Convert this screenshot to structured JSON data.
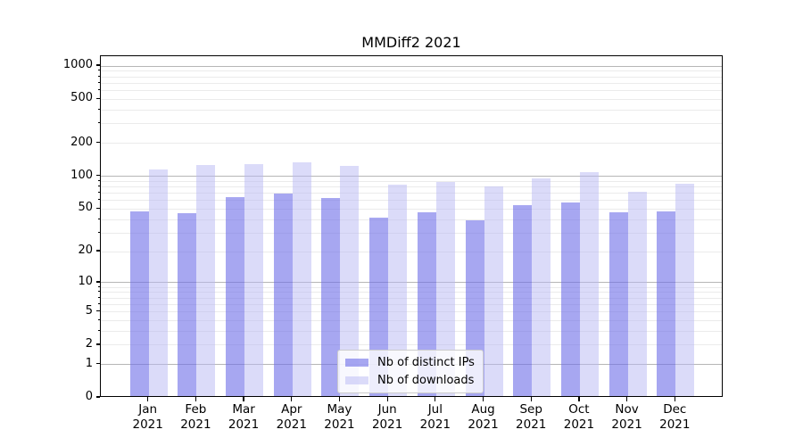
{
  "chart_data": {
    "type": "bar",
    "title": "MMDiff2 2021",
    "categories": [
      "Jan",
      "Feb",
      "Mar",
      "Apr",
      "May",
      "Jun",
      "Jul",
      "Aug",
      "Sep",
      "Oct",
      "Nov",
      "Dec"
    ],
    "year_label": "2021",
    "series": [
      {
        "name": "Nb of distinct IPs",
        "values": [
          46,
          44,
          62,
          67,
          61,
          40,
          45,
          38,
          52,
          55,
          45,
          46
        ],
        "color": "rgba(108,108,232,0.60)",
        "solid_color": "#a6a6f0"
      },
      {
        "name": "Nb of downloads",
        "values": [
          112,
          121,
          124,
          129,
          119,
          81,
          86,
          78,
          92,
          105,
          69,
          82
        ],
        "color": "rgba(183,183,243,0.50)",
        "solid_color": "#dcdcf9"
      }
    ],
    "y_axis": {
      "scale": "log1p",
      "tick_labels": [
        "1000",
        "500",
        "200",
        "100",
        "50",
        "20",
        "10",
        "5",
        "2",
        "1",
        "0"
      ],
      "tick_values": [
        1000,
        500,
        200,
        100,
        50,
        20,
        10,
        5,
        2,
        1,
        0
      ],
      "minor_values": [
        3,
        4,
        6,
        7,
        8,
        9,
        30,
        40,
        60,
        70,
        80,
        90,
        300,
        400,
        600,
        700,
        800,
        900
      ],
      "major_grid_values": [
        1,
        10,
        100,
        1000
      ],
      "top_value": 1230
    },
    "grid": true,
    "legend_position": "lower center-right inside plot"
  },
  "colors": {
    "axis": "#000000",
    "major_grid": "#b6b6b6",
    "minor_grid": "#ebebeb",
    "ips_bar": "#a6a6f0",
    "downloads_bar": "#dcdcf9",
    "legend_border": "#cccccc",
    "text": "#000000"
  }
}
